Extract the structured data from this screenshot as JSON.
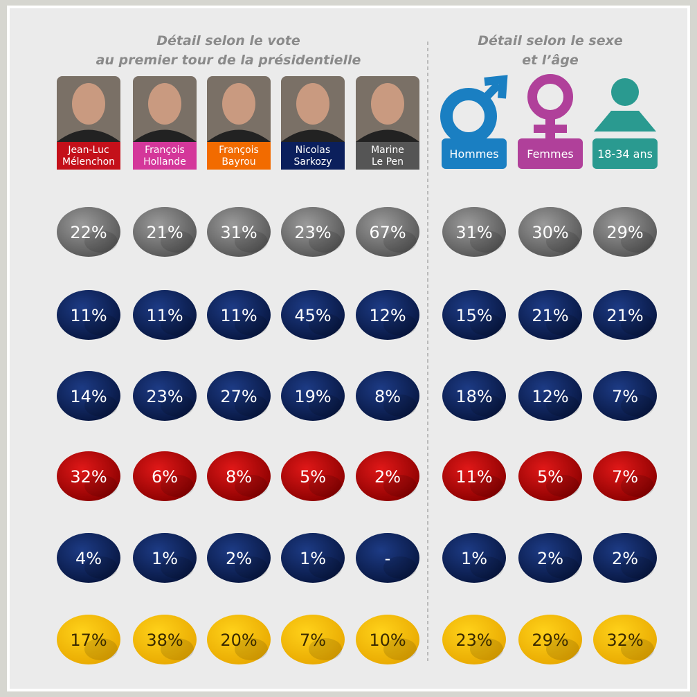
{
  "header": {
    "vote_title": [
      "Détail selon le vote",
      "au premier tour de la présidentielle"
    ],
    "sex_age_title": [
      "Détail selon le sexe",
      "et l’âge"
    ]
  },
  "columns": [
    {
      "label": [
        "Jean-Luc",
        "Mélenchon"
      ]
    },
    {
      "label": [
        "François",
        "Hollande"
      ]
    },
    {
      "label": [
        "François",
        "Bayrou"
      ]
    },
    {
      "label": [
        "Nicolas",
        "Sarkozy"
      ]
    },
    {
      "label": [
        "Marine",
        "Le Pen"
      ]
    },
    {
      "label": [
        "Hommes"
      ]
    },
    {
      "label": [
        "Femmes"
      ]
    },
    {
      "label": [
        "18-34 ans"
      ]
    }
  ],
  "rows": [
    [
      "22%",
      "21%",
      "31%",
      "23%",
      "67%",
      "31%",
      "30%",
      "29%"
    ],
    [
      "11%",
      "11%",
      "11%",
      "45%",
      "12%",
      "15%",
      "21%",
      "21%"
    ],
    [
      "14%",
      "23%",
      "27%",
      "19%",
      "8%",
      "18%",
      "12%",
      "7%"
    ],
    [
      "32%",
      "6%",
      "8%",
      "5%",
      "2%",
      "11%",
      "5%",
      "7%"
    ],
    [
      "4%",
      "1%",
      "2%",
      "1%",
      "-",
      "1%",
      "2%",
      "2%"
    ],
    [
      "17%",
      "38%",
      "20%",
      "7%",
      "10%",
      "23%",
      "29%",
      "32%"
    ]
  ]
}
